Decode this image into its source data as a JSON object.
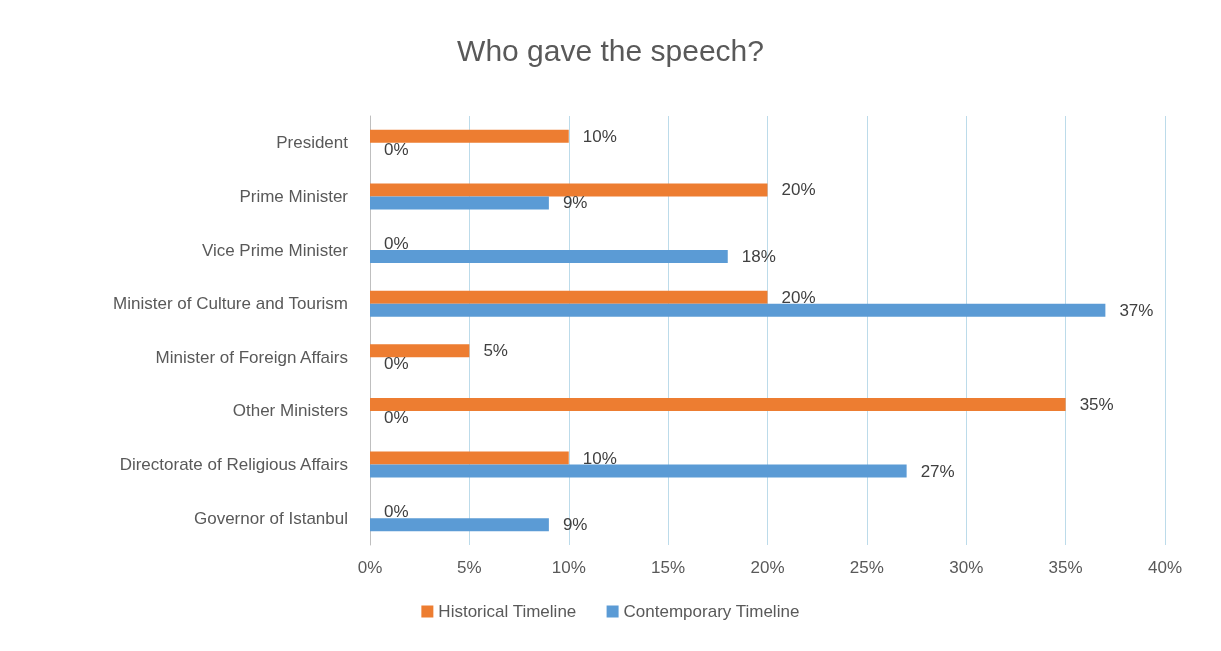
{
  "chart_data": {
    "type": "bar",
    "orientation": "horizontal",
    "title": "Who gave the speech?",
    "categories": [
      "President",
      "Prime Minister",
      "Vice Prime Minister",
      "Minister of Culture and Tourism",
      "Minister of Foreign Affairs",
      "Other Ministers",
      "Directorate of Religious Affairs",
      "Governor of Istanbul"
    ],
    "series": [
      {
        "name": "Historical Timeline",
        "color": "#ed7d31",
        "values": [
          10,
          20,
          0,
          20,
          5,
          35,
          10,
          0
        ],
        "value_labels": [
          "10%",
          "20%",
          "0%",
          "20%",
          "5%",
          "35%",
          "10%",
          "0%"
        ]
      },
      {
        "name": "Contemporary Timeline",
        "color": "#5b9bd5",
        "values": [
          0,
          9,
          18,
          37,
          0,
          0,
          27,
          9
        ],
        "value_labels": [
          "0%",
          "9%",
          "18%",
          "37%",
          "0%",
          "0%",
          "27%",
          "9%"
        ]
      }
    ],
    "xlim": [
      0,
      40
    ],
    "xticks": [
      {
        "value": 0,
        "label": "0%"
      },
      {
        "value": 5,
        "label": "5%"
      },
      {
        "value": 10,
        "label": "10%"
      },
      {
        "value": 15,
        "label": "15%"
      },
      {
        "value": 20,
        "label": "20%"
      },
      {
        "value": 25,
        "label": "25%"
      },
      {
        "value": 30,
        "label": "30%"
      },
      {
        "value": 35,
        "label": "35%"
      },
      {
        "value": 40,
        "label": "40%"
      }
    ],
    "grid": "x",
    "legend": "bottom"
  }
}
